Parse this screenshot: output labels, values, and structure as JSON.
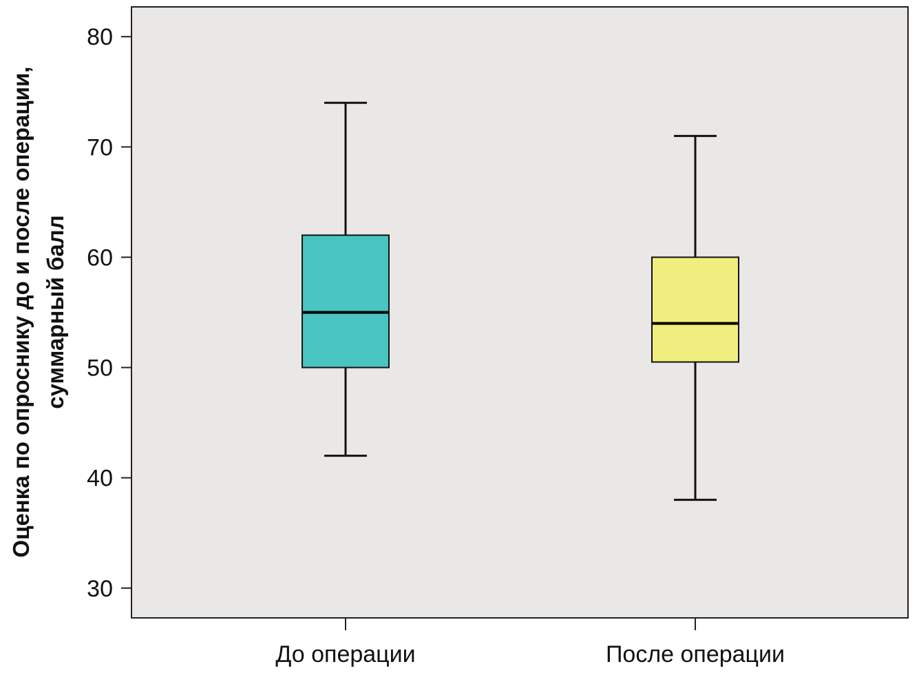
{
  "chart_data": {
    "type": "boxplot",
    "title": "",
    "xlabel": "",
    "ylabel_lines": [
      "Оценка по опроснику до и после операции,",
      "суммарный балл"
    ],
    "ylim": [
      27.3,
      82.7
    ],
    "yticks": [
      30,
      40,
      50,
      60,
      70,
      80
    ],
    "grid": false,
    "plot_background": "#e9e8e6",
    "categories": [
      "До операции",
      "После операции"
    ],
    "boxes": [
      {
        "category": "До операции",
        "whisker_low": 42,
        "q1": 50,
        "median": 55,
        "q3": 62,
        "whisker_high": 74,
        "color": "#48c4c2"
      },
      {
        "category": "После операции",
        "whisker_low": 38,
        "q1": 50.5,
        "median": 54,
        "q3": 60,
        "whisker_high": 71,
        "color": "#f1ee80"
      }
    ]
  }
}
